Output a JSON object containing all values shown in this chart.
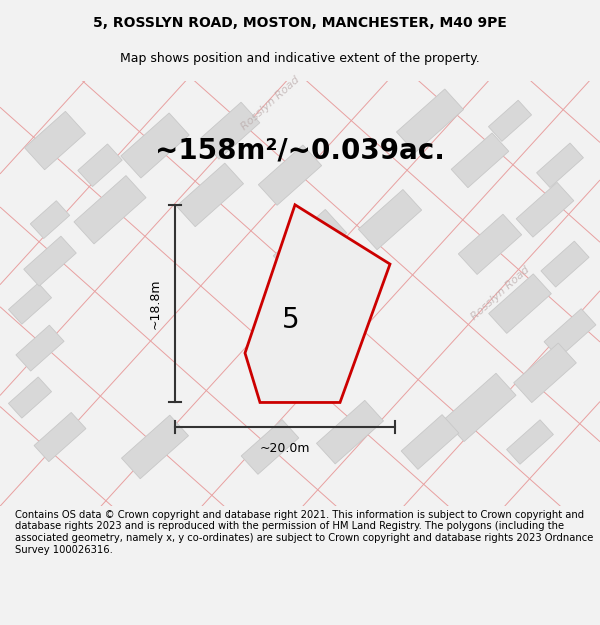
{
  "title_line1": "5, ROSSLYN ROAD, MOSTON, MANCHESTER, M40 9PE",
  "title_line2": "Map shows position and indicative extent of the property.",
  "area_label": "~158m²/~0.039ac.",
  "property_number": "5",
  "dim_width": "~20.0m",
  "dim_height": "~18.8m",
  "road_label1": "Rosslyn Road",
  "road_label2": "Rosslyn Road",
  "footer_text": "Contains OS data © Crown copyright and database right 2021. This information is subject to Crown copyright and database rights 2023 and is reproduced with the permission of HM Land Registry. The polygons (including the associated geometry, namely x, y co-ordinates) are subject to Crown copyright and database rights 2023 Ordnance Survey 100026316.",
  "bg_color": "#f2f2f2",
  "map_bg": "#eeeeee",
  "building_color": "#d8d8d8",
  "building_edge": "#c8c8c8",
  "road_line_color": "#e8a0a0",
  "highlight_color": "#cc0000",
  "highlight_fill": "#eeeeee",
  "dim_line_color": "#333333",
  "title_fontsize": 10,
  "subtitle_fontsize": 9,
  "area_fontsize": 20,
  "number_fontsize": 20,
  "footer_fontsize": 7.2,
  "road_text_color": "#b8a8a8",
  "road_text_alpha": 0.7
}
